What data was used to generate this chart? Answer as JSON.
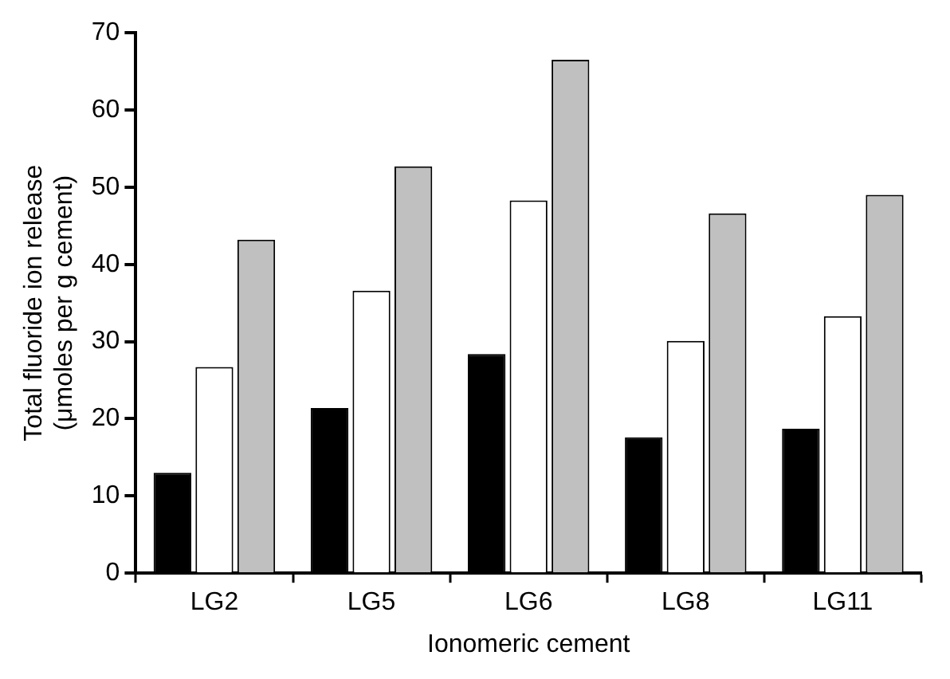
{
  "chart_data": {
    "type": "bar",
    "xlabel": "Ionomeric cement",
    "ylabel": "Total fluoride ion release\n(μmoles per g cement)",
    "categories": [
      "LG2",
      "LG5",
      "LG6",
      "LG8",
      "LG11"
    ],
    "series": [
      {
        "color": "#000000",
        "values": [
          13,
          21.4,
          28.4,
          17.6,
          18.7
        ]
      },
      {
        "color": "#ffffff",
        "values": [
          26.7,
          36.6,
          48.3,
          30.1,
          33.3
        ]
      },
      {
        "color": "#c0c0c0",
        "values": [
          43.2,
          52.7,
          66.5,
          46.6,
          49
        ]
      }
    ],
    "ylim": [
      0,
      70
    ],
    "yticks": [
      0,
      10,
      20,
      30,
      40,
      50,
      60,
      70
    ],
    "grid": false,
    "legend": false
  }
}
